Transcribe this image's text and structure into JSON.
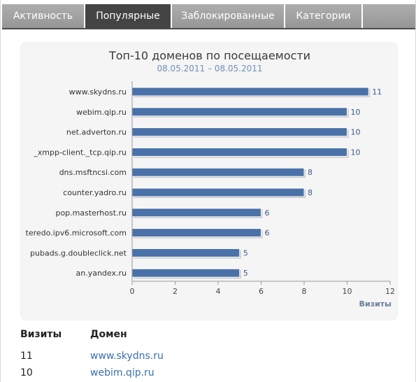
{
  "tabs": [
    {
      "label": "Активность",
      "active": false
    },
    {
      "label": "Популярные",
      "active": true
    },
    {
      "label": "Заблокированные",
      "active": false
    },
    {
      "label": "Категории",
      "active": false
    },
    {
      "label": "",
      "active": false
    }
  ],
  "colors": {
    "tab_active": "#444444",
    "tab_inactive": "#a3a3a3",
    "bar_fill": "#4a72a8",
    "bar_shadow": "#c8c8c8",
    "link": "#3b6fb0",
    "card_bg": "#f5f5f5"
  },
  "chart_data": {
    "type": "bar",
    "orientation": "horizontal",
    "title": "Топ-10 доменов по посещаемости",
    "subtitle": "08.05.2011 – 08.05.2011",
    "categories": [
      "www.skydns.ru",
      "webim.qip.ru",
      "net.adverton.ru",
      "_xmpp-client._tcp.qip.ru",
      "dns.msftncsi.com",
      "counter.yadro.ru",
      "pop.masterhost.ru",
      "teredo.ipv6.microsoft.com",
      "pubads.g.doubleclick.net",
      "an.yandex.ru"
    ],
    "values": [
      11,
      10,
      10,
      10,
      8,
      8,
      6,
      6,
      5,
      5
    ],
    "value_labels": [
      "11",
      "10",
      "10",
      "10",
      "8",
      "8",
      "6",
      "6",
      "5",
      "5"
    ],
    "x_ticks": [
      "0",
      "2",
      "4",
      "6",
      "8",
      "10",
      "12"
    ],
    "xlim": [
      0,
      12
    ],
    "xlabel": "Визиты",
    "ylabel": "",
    "grid": false,
    "legend": "none"
  },
  "table": {
    "headers": {
      "visits": "Визиты",
      "domain": "Домен"
    },
    "rows": [
      {
        "visits": "11",
        "domain": "www.skydns.ru"
      },
      {
        "visits": "10",
        "domain": "webim.qip.ru"
      }
    ]
  }
}
